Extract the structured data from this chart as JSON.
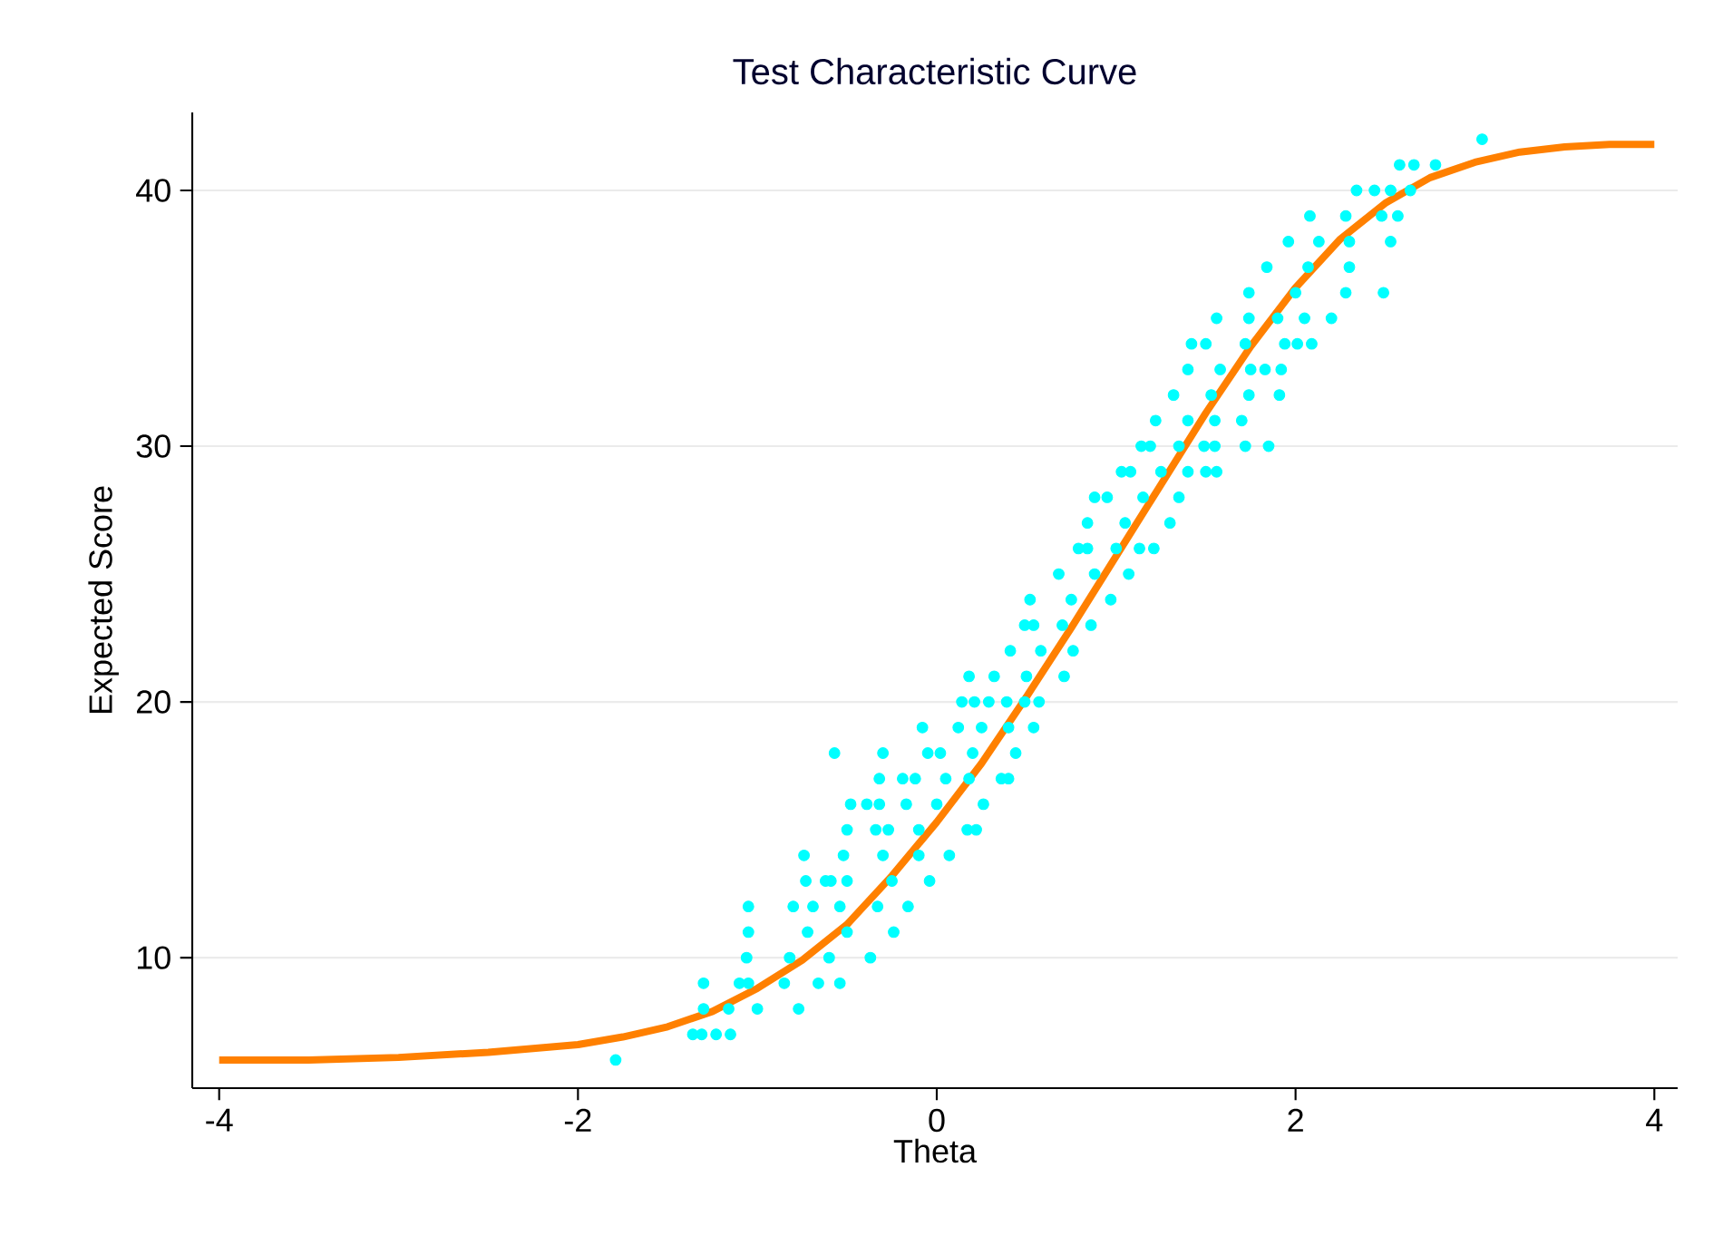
{
  "chart_data": {
    "type": "scatter",
    "title": "Test Characteristic Curve",
    "xlabel": "Theta",
    "ylabel": "Expected Score",
    "xlim": [
      -4.15,
      4.13
    ],
    "ylim": [
      4.9,
      43.05
    ],
    "xticks": [
      -4,
      -2,
      0,
      2,
      4
    ],
    "yticks": [
      10,
      20,
      30,
      40
    ],
    "grid": "y",
    "legend": false,
    "series": [
      {
        "marker": "circle",
        "color": "#00ffff",
        "x": [
          -1.79,
          -1.36,
          -1.31,
          -1.23,
          -1.15,
          -1.3,
          -1.16,
          -1.0,
          -0.77,
          -1.3,
          -1.1,
          -1.05,
          -0.85,
          -0.66,
          -0.54,
          -1.06,
          -0.82,
          -0.6,
          -0.37,
          -1.05,
          -0.72,
          -0.5,
          -0.24,
          -1.05,
          -0.8,
          -0.69,
          -0.54,
          -0.33,
          -0.16,
          -0.73,
          -0.62,
          -0.59,
          -0.5,
          -0.25,
          -0.04,
          -0.74,
          -0.52,
          -0.3,
          -0.1,
          0.07,
          -0.5,
          -0.34,
          -0.27,
          -0.1,
          0.17,
          0.22,
          -0.48,
          -0.39,
          -0.32,
          -0.17,
          0.0,
          0.26,
          -0.32,
          -0.19,
          -0.12,
          0.05,
          0.18,
          0.36,
          0.4,
          -0.57,
          -0.3,
          -0.05,
          0.02,
          0.2,
          0.44,
          -0.08,
          0.12,
          0.25,
          0.4,
          0.54,
          0.14,
          0.21,
          0.29,
          0.39,
          0.49,
          0.57,
          0.18,
          0.32,
          0.5,
          0.71,
          0.41,
          0.58,
          0.76,
          0.49,
          0.54,
          0.7,
          0.86,
          0.52,
          0.75,
          0.97,
          0.68,
          0.88,
          1.07,
          0.79,
          0.84,
          1.0,
          1.13,
          1.21,
          0.84,
          1.05,
          1.3,
          0.88,
          0.95,
          1.15,
          1.35,
          1.03,
          1.08,
          1.25,
          1.4,
          1.5,
          1.56,
          1.14,
          1.19,
          1.35,
          1.49,
          1.55,
          1.72,
          1.85,
          1.22,
          1.4,
          1.55,
          1.7,
          1.32,
          1.53,
          1.74,
          1.91,
          1.4,
          1.58,
          1.75,
          1.83,
          1.92,
          1.42,
          1.5,
          1.72,
          1.94,
          2.01,
          2.09,
          1.56,
          1.74,
          1.9,
          2.05,
          2.2,
          1.74,
          2.0,
          2.28,
          2.49,
          1.84,
          2.07,
          2.3,
          1.96,
          2.13,
          2.3,
          2.53,
          2.08,
          2.28,
          2.48,
          2.57,
          2.34,
          2.44,
          2.53,
          2.64,
          2.58,
          2.66,
          2.78,
          3.04
        ],
        "values": [
          6,
          7,
          7,
          7,
          7,
          8,
          8,
          8,
          8,
          9,
          9,
          9,
          9,
          9,
          9,
          10,
          10,
          10,
          10,
          11,
          11,
          11,
          11,
          12,
          12,
          12,
          12,
          12,
          12,
          13,
          13,
          13,
          13,
          13,
          13,
          14,
          14,
          14,
          14,
          14,
          15,
          15,
          15,
          15,
          15,
          15,
          16,
          16,
          16,
          16,
          16,
          16,
          17,
          17,
          17,
          17,
          17,
          17,
          17,
          18,
          18,
          18,
          18,
          18,
          18,
          19,
          19,
          19,
          19,
          19,
          20,
          20,
          20,
          20,
          20,
          20,
          21,
          21,
          21,
          21,
          22,
          22,
          22,
          23,
          23,
          23,
          23,
          24,
          24,
          24,
          25,
          25,
          25,
          26,
          26,
          26,
          26,
          26,
          27,
          27,
          27,
          28,
          28,
          28,
          28,
          29,
          29,
          29,
          29,
          29,
          29,
          30,
          30,
          30,
          30,
          30,
          30,
          30,
          31,
          31,
          31,
          31,
          32,
          32,
          32,
          32,
          33,
          33,
          33,
          33,
          33,
          34,
          34,
          34,
          34,
          34,
          34,
          35,
          35,
          35,
          35,
          35,
          36,
          36,
          36,
          36,
          37,
          37,
          37,
          38,
          38,
          38,
          38,
          39,
          39,
          39,
          39,
          40,
          40,
          40,
          40,
          41,
          41,
          41,
          42
        ]
      },
      {
        "type": "line",
        "marker": "none",
        "line_style": "solid",
        "color": "#ff8000",
        "x": [
          -4,
          -3.5,
          -3,
          -2.5,
          -2,
          -1.75,
          -1.5,
          -1.25,
          -1,
          -0.75,
          -0.5,
          -0.25,
          0,
          0.25,
          0.5,
          0.75,
          1,
          1.25,
          1.5,
          1.75,
          2,
          2.25,
          2.5,
          2.75,
          3,
          3.25,
          3.5,
          3.75,
          4
        ],
        "values": [
          6.0,
          6.0,
          6.1,
          6.3,
          6.6,
          6.9,
          7.3,
          7.9,
          8.8,
          9.9,
          11.3,
          13.2,
          15.3,
          17.6,
          20.2,
          22.9,
          25.7,
          28.5,
          31.3,
          33.9,
          36.2,
          38.1,
          39.5,
          40.5,
          41.1,
          41.5,
          41.7,
          41.8,
          41.8
        ]
      }
    ]
  }
}
